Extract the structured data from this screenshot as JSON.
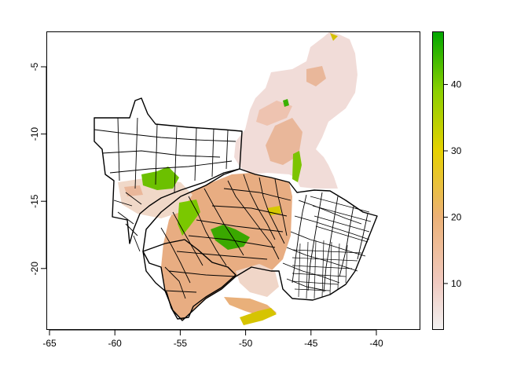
{
  "map": {
    "x_ticks": [
      "-65",
      "-60",
      "-55",
      "-50",
      "-45",
      "-40"
    ],
    "y_ticks": [
      "-5",
      "-10",
      "-15",
      "-20"
    ],
    "x_range": [
      -66.5,
      -36.5
    ],
    "y_range": [
      -24.9,
      -2.1
    ]
  },
  "legend": {
    "ticks": [
      "10",
      "20",
      "30",
      "40"
    ],
    "range": [
      3,
      48
    ],
    "colors": [
      "#f2f2f2",
      "#ecb176",
      "#e6d100",
      "#8bd000",
      "#00a600"
    ]
  }
}
